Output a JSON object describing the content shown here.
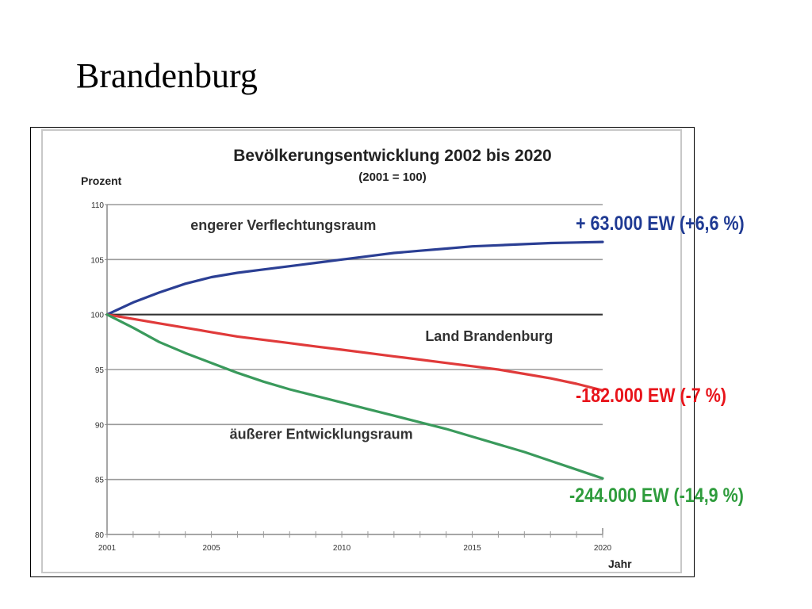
{
  "slide": {
    "title": "Brandenburg"
  },
  "annotations": {
    "blue": {
      "text": "+ 63.000 EW (+6,6 %)",
      "color": "#1f3a93"
    },
    "red": {
      "text": "-182.000 EW (-7 %)",
      "color": "#e8141b"
    },
    "green": {
      "text": "-244.000 EW (-14,9 %)",
      "color": "#2e9c3c"
    }
  },
  "chart_data": {
    "type": "line",
    "title": "Bevölkerungsentwicklung  2002 bis 2020",
    "subtitle": "(2001 = 100)",
    "ylabel": "Prozent",
    "xlabel": "Jahr",
    "xlim": [
      2001,
      2020
    ],
    "ylim": [
      80,
      110
    ],
    "x_ticks": [
      "2001",
      "2005",
      "2010",
      "2015",
      "2020"
    ],
    "y_ticks": [
      "80",
      "85",
      "90",
      "95",
      "100",
      "105",
      "110"
    ],
    "grid": true,
    "reference_line": 100,
    "series": [
      {
        "name": "engerer Verflechtungsraum",
        "color": "#2b3f94",
        "x": [
          2001,
          2002,
          2003,
          2004,
          2005,
          2006,
          2007,
          2008,
          2009,
          2010,
          2011,
          2012,
          2013,
          2014,
          2015,
          2016,
          2017,
          2018,
          2019,
          2020
        ],
        "values": [
          100.0,
          101.1,
          102.0,
          102.8,
          103.4,
          103.8,
          104.1,
          104.4,
          104.7,
          105.0,
          105.3,
          105.6,
          105.8,
          106.0,
          106.2,
          106.3,
          106.4,
          106.5,
          106.55,
          106.6
        ]
      },
      {
        "name": "Land Brandenburg",
        "color": "#e03a3a",
        "x": [
          2001,
          2002,
          2003,
          2004,
          2005,
          2006,
          2007,
          2008,
          2009,
          2010,
          2011,
          2012,
          2013,
          2014,
          2015,
          2016,
          2017,
          2018,
          2019,
          2020
        ],
        "values": [
          100.0,
          99.6,
          99.2,
          98.8,
          98.4,
          98.0,
          97.7,
          97.4,
          97.1,
          96.8,
          96.5,
          96.2,
          95.9,
          95.6,
          95.3,
          95.0,
          94.6,
          94.2,
          93.7,
          93.1
        ]
      },
      {
        "name": "äußerer Entwicklungsraum",
        "color": "#3a9a5c",
        "x": [
          2001,
          2002,
          2003,
          2004,
          2005,
          2006,
          2007,
          2008,
          2009,
          2010,
          2011,
          2012,
          2013,
          2014,
          2015,
          2016,
          2017,
          2018,
          2019,
          2020
        ],
        "values": [
          100.0,
          98.8,
          97.5,
          96.5,
          95.6,
          94.7,
          93.9,
          93.2,
          92.6,
          92.0,
          91.4,
          90.8,
          90.2,
          89.6,
          88.9,
          88.2,
          87.5,
          86.7,
          85.9,
          85.1
        ]
      }
    ],
    "series_labels": [
      {
        "text": "engerer Verflechtungsraum",
        "x": 2004.2,
        "y": 107.7
      },
      {
        "text": "Land Brandenburg",
        "x": 2013.2,
        "y": 97.6
      },
      {
        "text": "äußerer Entwicklungsraum",
        "x": 2005.7,
        "y": 88.7
      }
    ]
  }
}
